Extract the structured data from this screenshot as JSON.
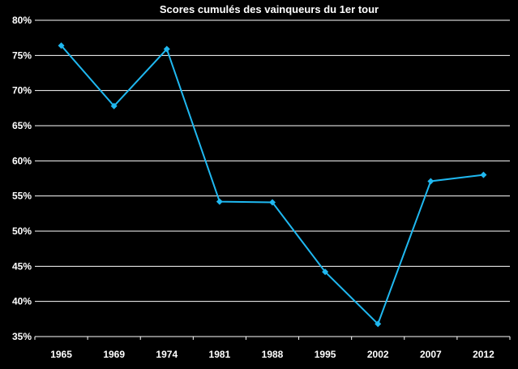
{
  "chart_data": {
    "type": "line",
    "title": "Scores cumulés des vainqueurs du 1er tour",
    "xlabel": "",
    "ylabel": "",
    "categories": [
      "1965",
      "1969",
      "1974",
      "1981",
      "1988",
      "1995",
      "2002",
      "2007",
      "2012"
    ],
    "series": [
      {
        "values": [
          76.4,
          67.8,
          75.9,
          54.2,
          54.1,
          44.2,
          36.8,
          57.1,
          58.0
        ],
        "color": "#1fb8f0"
      }
    ],
    "ylim": [
      35,
      80
    ],
    "y_ticks": [
      "35%",
      "40%",
      "45%",
      "50%",
      "55%",
      "60%",
      "65%",
      "70%",
      "75%",
      "80%"
    ],
    "grid": true,
    "legend": "none",
    "colors": {
      "background": "#000000",
      "grid": "#ffffff",
      "text": "#ffffff"
    }
  }
}
